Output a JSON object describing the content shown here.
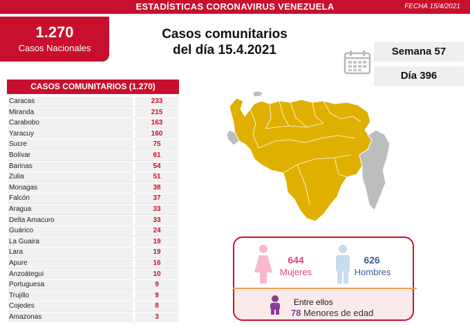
{
  "header": {
    "title": "ESTADÍSTICAS CORONAVIRUS VENEZUELA",
    "date": "FECHA 15/4/2021"
  },
  "national": {
    "total": "1.270",
    "label": "Casos Nacionales"
  },
  "headline": {
    "line1": "Casos comunitarios",
    "line2": "del día 15.4.2021"
  },
  "week": "Semana 57",
  "day": "Día 396",
  "table": {
    "title": "CASOS COMUNITARIOS (1.270)",
    "rows": [
      {
        "state": "Caracas",
        "cases": "233"
      },
      {
        "state": "Miranda",
        "cases": "215"
      },
      {
        "state": "Carabobo",
        "cases": "163"
      },
      {
        "state": "Yaracuy",
        "cases": "160"
      },
      {
        "state": "Sucre",
        "cases": "75"
      },
      {
        "state": "Bolívar",
        "cases": "61"
      },
      {
        "state": "Barinas",
        "cases": "54"
      },
      {
        "state": "Zulia",
        "cases": "51"
      },
      {
        "state": "Monagas",
        "cases": "38"
      },
      {
        "state": "Falcón",
        "cases": "37"
      },
      {
        "state": "Aragua",
        "cases": "33"
      },
      {
        "state": "Delta Amacuro",
        "cases": "33"
      },
      {
        "state": "Guárico",
        "cases": "24"
      },
      {
        "state": "La Guaira",
        "cases": "19"
      },
      {
        "state": "Lara",
        "cases": "19"
      },
      {
        "state": "Apure",
        "cases": "16"
      },
      {
        "state": "Anzoátegui",
        "cases": "10"
      },
      {
        "state": "Portuguesa",
        "cases": "9"
      },
      {
        "state": "Trujillo",
        "cases": "9"
      },
      {
        "state": "Cojedes",
        "cases": "8"
      },
      {
        "state": "Amazonas",
        "cases": "3"
      }
    ]
  },
  "gender": {
    "women_count": "644",
    "women_label": "Mujeres",
    "men_count": "626",
    "men_label": "Hombres",
    "among_label": "Entre ellos",
    "minors_count": "78",
    "minors_label": "Menores de edad"
  },
  "colors": {
    "brand_red": "#c8102e",
    "map_highlight": "#e0b000",
    "map_gray": "#bdbdbd",
    "female_pink": "#e4407e",
    "male_blue": "#3f5b8c",
    "minors_purple": "#8a3b9c"
  },
  "icons": [
    "calendar-icon",
    "female-icon",
    "male-icon",
    "child-icon"
  ]
}
